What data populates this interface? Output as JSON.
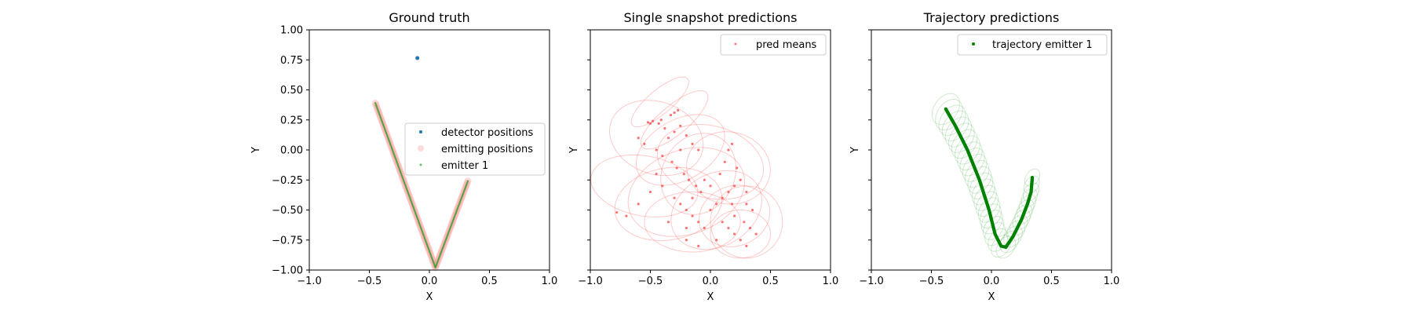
{
  "chart_data": [
    {
      "type": "scatter",
      "title": "Ground truth",
      "xlabel": "X",
      "ylabel": "Y",
      "xlim": [
        -1.0,
        1.0
      ],
      "ylim": [
        -1.0,
        1.0
      ],
      "xticks": [
        "−1.0",
        "−0.5",
        "0.0",
        "0.5",
        "1.0"
      ],
      "yticks": [
        "−1.00",
        "−0.75",
        "−0.50",
        "−0.25",
        "0.00",
        "0.25",
        "0.50",
        "0.75",
        "1.00"
      ],
      "legend_position": "center-right",
      "series": [
        {
          "name": "detector positions",
          "marker": "dot",
          "color": "#1f77b4",
          "points": [
            [
              -0.1,
              0.765
            ]
          ]
        },
        {
          "name": "emitting positions",
          "marker": "circle",
          "color": "#ff9999",
          "path": [
            [
              -0.45,
              0.39
            ],
            [
              0.05,
              -0.98
            ],
            [
              0.32,
              -0.26
            ]
          ]
        },
        {
          "name": "emitter 1",
          "marker": "dot",
          "color": "#2ca02c",
          "path": [
            [
              -0.45,
              0.39
            ],
            [
              0.05,
              -0.98
            ],
            [
              0.32,
              -0.26
            ]
          ]
        }
      ]
    },
    {
      "type": "scatter",
      "title": "Single snapshot predictions",
      "xlabel": "X",
      "ylabel": "Y",
      "xlim": [
        -1.0,
        1.0
      ],
      "ylim": [
        -1.0,
        1.0
      ],
      "xticks": [
        "−1.0",
        "−0.5",
        "0.0",
        "0.5",
        "1.0"
      ],
      "legend_position": "top-right",
      "series": [
        {
          "name": "pred means",
          "marker": "dot",
          "color": "#ff4444",
          "points": [
            [
              -0.52,
              0.23
            ],
            [
              -0.5,
              0.22
            ],
            [
              -0.48,
              0.24
            ],
            [
              -0.43,
              0.22
            ],
            [
              -0.41,
              0.25
            ],
            [
              -0.33,
              0.29
            ],
            [
              -0.3,
              0.31
            ],
            [
              -0.27,
              0.33
            ],
            [
              -0.6,
              0.1
            ],
            [
              -0.55,
              0.05
            ],
            [
              -0.45,
              0.0
            ],
            [
              -0.4,
              -0.05
            ],
            [
              -0.35,
              0.1
            ],
            [
              -0.3,
              0.15
            ],
            [
              -0.25,
              0.2
            ],
            [
              -0.2,
              0.12
            ],
            [
              -0.15,
              0.05
            ],
            [
              -0.1,
              0.0
            ],
            [
              -0.32,
              -0.1
            ],
            [
              -0.28,
              -0.15
            ],
            [
              -0.22,
              -0.2
            ],
            [
              -0.18,
              -0.25
            ],
            [
              -0.12,
              -0.3
            ],
            [
              -0.08,
              -0.35
            ],
            [
              -0.3,
              -0.4
            ],
            [
              -0.25,
              -0.45
            ],
            [
              -0.2,
              -0.5
            ],
            [
              -0.15,
              -0.55
            ],
            [
              -0.1,
              -0.6
            ],
            [
              -0.05,
              -0.65
            ],
            [
              0.0,
              -0.5
            ],
            [
              0.05,
              -0.45
            ],
            [
              0.1,
              -0.4
            ],
            [
              0.15,
              -0.35
            ],
            [
              0.2,
              -0.3
            ],
            [
              0.25,
              -0.25
            ],
            [
              0.1,
              -0.6
            ],
            [
              0.15,
              -0.65
            ],
            [
              0.2,
              -0.7
            ],
            [
              0.25,
              -0.75
            ],
            [
              0.3,
              -0.8
            ],
            [
              0.2,
              -0.55
            ],
            [
              0.28,
              -0.6
            ],
            [
              0.33,
              -0.65
            ],
            [
              0.38,
              -0.7
            ],
            [
              0.12,
              -0.1
            ],
            [
              0.15,
              0.0
            ],
            [
              0.18,
              0.05
            ],
            [
              0.08,
              -0.2
            ],
            [
              -0.05,
              -0.25
            ],
            [
              -0.4,
              -0.3
            ],
            [
              -0.45,
              -0.2
            ],
            [
              -0.5,
              -0.35
            ],
            [
              -0.6,
              -0.45
            ],
            [
              -0.7,
              -0.55
            ],
            [
              -0.78,
              -0.52
            ],
            [
              -0.2,
              -0.75
            ],
            [
              -0.1,
              -0.8
            ],
            [
              0.05,
              -0.75
            ],
            [
              0.3,
              -0.45
            ],
            [
              0.35,
              -0.5
            ],
            [
              -0.35,
              -0.6
            ],
            [
              -0.2,
              -0.65
            ],
            [
              0.0,
              -0.3
            ],
            [
              0.22,
              -0.15
            ],
            [
              -0.15,
              -0.4
            ],
            [
              0.3,
              -0.35
            ],
            [
              0.18,
              -0.45
            ],
            [
              -0.25,
              0.0
            ],
            [
              -0.38,
              0.18
            ]
          ]
        }
      ],
      "ellipses": [
        [
          -0.42,
          0.4,
          0.3,
          0.1,
          40
        ],
        [
          -0.3,
          0.25,
          0.35,
          0.12,
          40
        ],
        [
          -0.25,
          0.0,
          0.4,
          0.25,
          30
        ],
        [
          -0.1,
          -0.2,
          0.35,
          0.3,
          60
        ],
        [
          0.15,
          -0.15,
          0.3,
          0.35,
          80
        ],
        [
          0.2,
          -0.55,
          0.3,
          0.25,
          20
        ],
        [
          0.25,
          -0.7,
          0.25,
          0.2,
          0
        ],
        [
          -0.35,
          -0.45,
          0.45,
          0.3,
          10
        ],
        [
          -0.15,
          -0.6,
          0.4,
          0.25,
          0
        ],
        [
          0.05,
          -0.5,
          0.4,
          0.3,
          30
        ],
        [
          -0.45,
          0.1,
          0.3,
          0.4,
          70
        ],
        [
          0.3,
          -0.6,
          0.3,
          0.3,
          45
        ],
        [
          -0.55,
          -0.3,
          0.25,
          0.45,
          80
        ],
        [
          0.0,
          -0.1,
          0.3,
          0.45,
          75
        ],
        [
          -0.2,
          -0.35,
          0.5,
          0.35,
          20
        ]
      ]
    },
    {
      "type": "scatter",
      "title": "Trajectory predictions",
      "xlabel": "X",
      "ylabel": "Y",
      "xlim": [
        -1.0,
        1.0
      ],
      "ylim": [
        -1.0,
        1.0
      ],
      "xticks": [
        "−1.0",
        "−0.5",
        "0.0",
        "0.5",
        "1.0"
      ],
      "legend_position": "top-right",
      "series": [
        {
          "name": "trajectory emitter 1",
          "marker": "dot",
          "color": "#008000",
          "path": [
            [
              -0.38,
              0.34
            ],
            [
              -0.3,
              0.2
            ],
            [
              -0.2,
              0.0
            ],
            [
              -0.1,
              -0.25
            ],
            [
              -0.02,
              -0.5
            ],
            [
              0.03,
              -0.7
            ],
            [
              0.08,
              -0.8
            ],
            [
              0.12,
              -0.81
            ],
            [
              0.18,
              -0.72
            ],
            [
              0.25,
              -0.58
            ],
            [
              0.3,
              -0.45
            ],
            [
              0.33,
              -0.35
            ],
            [
              0.34,
              -0.23
            ]
          ]
        }
      ]
    }
  ]
}
